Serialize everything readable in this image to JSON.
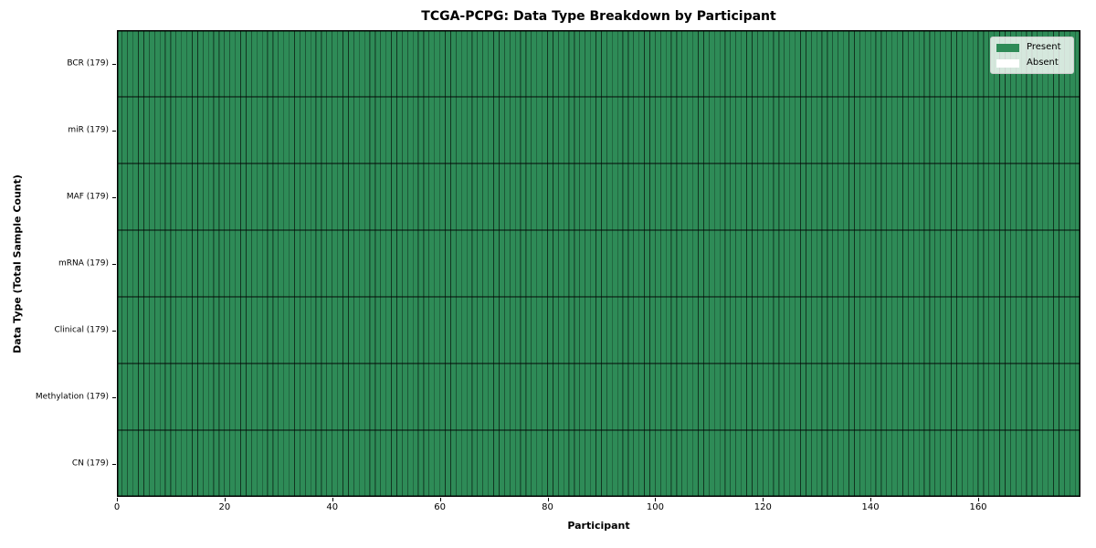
{
  "chart_data": {
    "type": "heatmap",
    "title": "TCGA-PCPG: Data Type Breakdown by Participant",
    "xlabel": "Participant",
    "ylabel": "Data Type (Total Sample Count)",
    "n_participants": 179,
    "xlim": [
      0,
      179
    ],
    "x_ticks": [
      0,
      20,
      40,
      60,
      80,
      100,
      120,
      140,
      160
    ],
    "rows": [
      {
        "label": "BCR (179)",
        "data_type": "BCR",
        "total_sample_count": 179,
        "present_count": 179,
        "absent_count": 0,
        "absent_participants": []
      },
      {
        "label": "miR (179)",
        "data_type": "miR",
        "total_sample_count": 179,
        "present_count": 179,
        "absent_count": 0,
        "absent_participants": []
      },
      {
        "label": "MAF (179)",
        "data_type": "MAF",
        "total_sample_count": 179,
        "present_count": 179,
        "absent_count": 0,
        "absent_participants": []
      },
      {
        "label": "mRNA (179)",
        "data_type": "mRNA",
        "total_sample_count": 179,
        "present_count": 179,
        "absent_count": 0,
        "absent_participants": []
      },
      {
        "label": "Clinical (179)",
        "data_type": "Clinical",
        "total_sample_count": 179,
        "present_count": 179,
        "absent_count": 0,
        "absent_participants": []
      },
      {
        "label": "Methylation (179)",
        "data_type": "Methylation",
        "total_sample_count": 179,
        "present_count": 179,
        "absent_count": 0,
        "absent_participants": []
      },
      {
        "label": "CN (179)",
        "data_type": "CN",
        "total_sample_count": 179,
        "present_count": 179,
        "absent_count": 0,
        "absent_participants": []
      }
    ],
    "legend": [
      {
        "label": "Present",
        "color": "#2e8b57"
      },
      {
        "label": "Absent",
        "color": "#ffffff"
      }
    ],
    "legend_position": "upper right",
    "grid": "cell-edges",
    "colors": {
      "present": "#2e8b57",
      "absent": "#ffffff",
      "cell_edge": "rgba(0,0,0,0.5)",
      "row_edge": "rgba(0,0,0,0.8)",
      "spine": "#000000",
      "legend_background": "rgba(255,255,255,0.8)",
      "legend_border": "#cccccc"
    }
  }
}
